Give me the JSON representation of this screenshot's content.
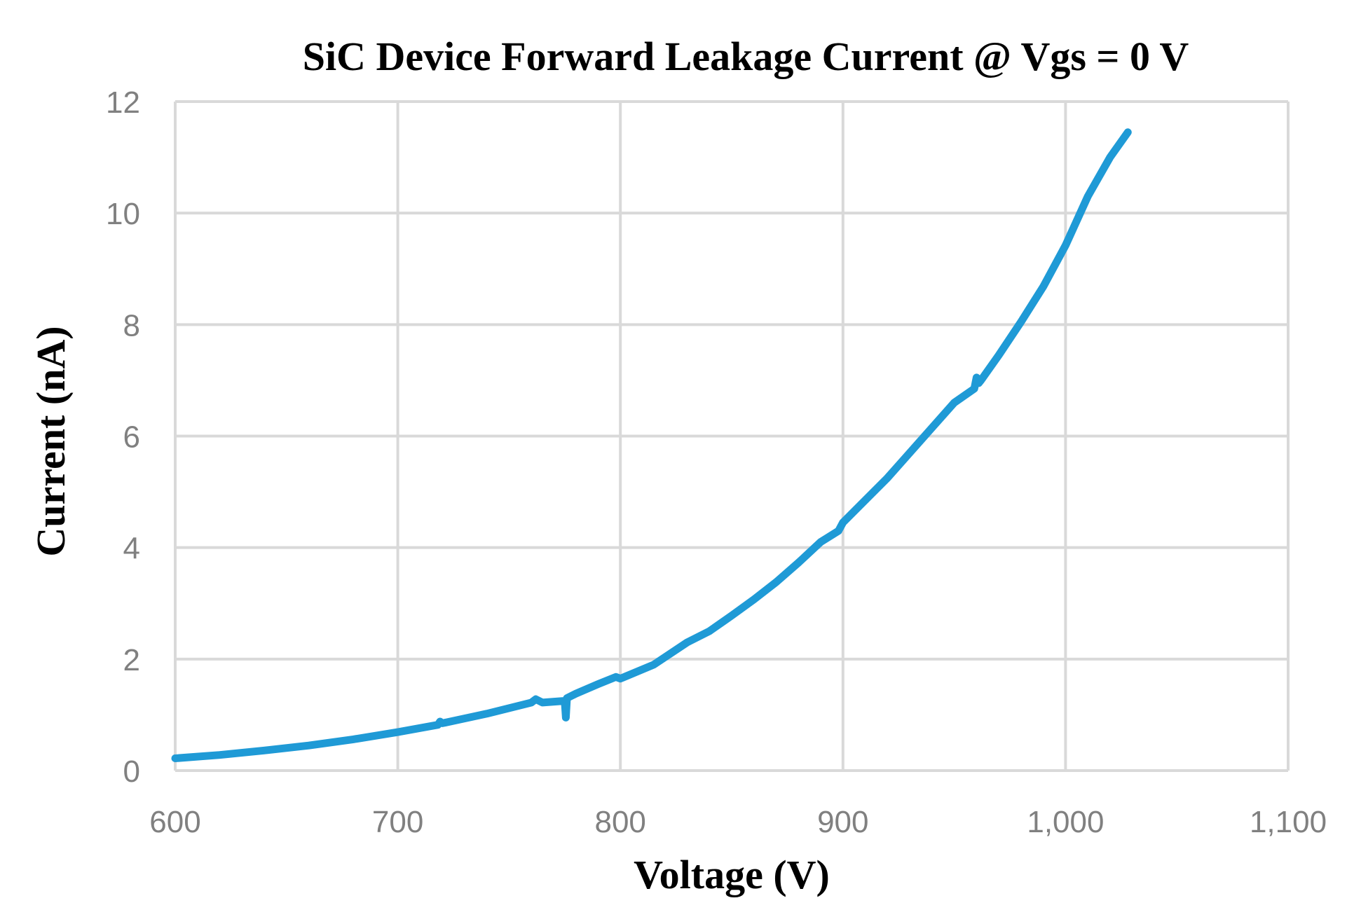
{
  "chart_data": {
    "type": "line",
    "title": "SiC Device Forward Leakage Current @ Vgs = 0 V",
    "xlabel": "Voltage (V)",
    "ylabel": "Current (nA)",
    "xlim": [
      600,
      1100
    ],
    "ylim": [
      0,
      12
    ],
    "xticks": [
      600,
      700,
      800,
      900,
      1000,
      1100
    ],
    "xtick_labels": [
      "600",
      "700",
      "800",
      "900",
      "1,000",
      "1,100"
    ],
    "yticks": [
      0,
      2,
      4,
      6,
      8,
      10,
      12
    ],
    "ytick_labels": [
      "0",
      "2",
      "4",
      "6",
      "8",
      "10",
      "12"
    ],
    "grid": true,
    "legend": "none",
    "series": [
      {
        "color": "#1f9ad6",
        "x": [
          600,
          620,
          640,
          660,
          680,
          700,
          718,
          719,
          720,
          740,
          760,
          762,
          765,
          775,
          775.5,
          776,
          780,
          790,
          798,
          800,
          815,
          830,
          840,
          850,
          860,
          870,
          880,
          890,
          898,
          900,
          910,
          920,
          930,
          940,
          950,
          959,
          960,
          961,
          962,
          970,
          980,
          990,
          1000,
          1010,
          1020,
          1028
        ],
        "y": [
          0.22,
          0.28,
          0.36,
          0.45,
          0.56,
          0.69,
          0.82,
          0.88,
          0.85,
          1.02,
          1.22,
          1.28,
          1.22,
          1.25,
          0.95,
          1.3,
          1.38,
          1.55,
          1.68,
          1.65,
          1.9,
          2.3,
          2.5,
          2.78,
          3.07,
          3.38,
          3.73,
          4.1,
          4.3,
          4.45,
          4.85,
          5.25,
          5.7,
          6.15,
          6.6,
          6.85,
          7.05,
          6.95,
          7.0,
          7.45,
          8.05,
          8.68,
          9.42,
          10.3,
          11.0,
          11.45
        ]
      }
    ]
  }
}
